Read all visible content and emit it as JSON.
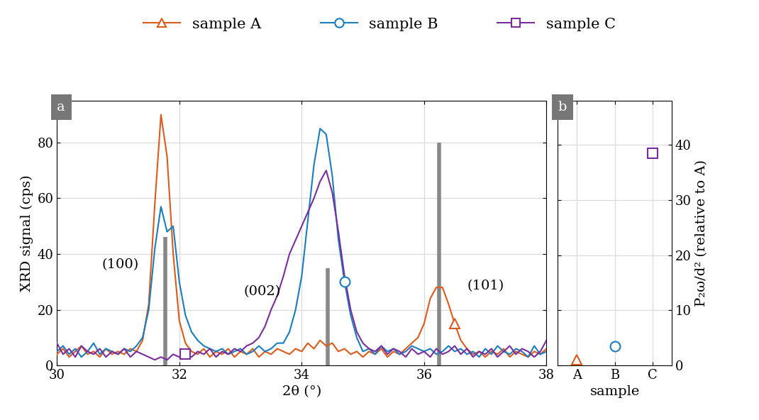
{
  "chart_data": [
    {
      "type": "line",
      "panel_label": "a",
      "x_label": "2θ (°)",
      "y_label": "XRD signal (cps)",
      "xlim": [
        30,
        38
      ],
      "xticks": [
        30,
        32,
        34,
        36,
        38
      ],
      "ylim": [
        0,
        95
      ],
      "yticks": [
        0,
        20,
        40,
        60,
        80
      ],
      "grid": true,
      "legend": "upper center",
      "x": [
        30.0,
        30.1,
        30.2,
        30.3,
        30.4,
        30.5,
        30.6,
        30.7,
        30.8,
        30.9,
        31.0,
        31.1,
        31.2,
        31.3,
        31.4,
        31.5,
        31.6,
        31.7,
        31.8,
        31.9,
        32.0,
        32.1,
        32.2,
        32.3,
        32.4,
        32.5,
        32.6,
        32.7,
        32.8,
        32.9,
        33.0,
        33.1,
        33.2,
        33.3,
        33.4,
        33.5,
        33.6,
        33.7,
        33.8,
        33.9,
        34.0,
        34.1,
        34.2,
        34.3,
        34.4,
        34.5,
        34.6,
        34.7,
        34.8,
        34.9,
        35.0,
        35.1,
        35.2,
        35.3,
        35.4,
        35.5,
        35.6,
        35.7,
        35.8,
        35.9,
        36.0,
        36.1,
        36.2,
        36.3,
        36.4,
        36.5,
        36.6,
        36.7,
        36.8,
        36.9,
        37.0,
        37.1,
        37.2,
        37.3,
        37.4,
        37.5,
        37.6,
        37.7,
        37.8,
        37.9,
        38.0
      ],
      "series": [
        {
          "name": "sample A",
          "color": "#dd5a1a",
          "marker": "triangle",
          "line_style": "solid",
          "values": [
            4,
            6,
            3,
            5,
            7,
            4,
            5,
            3,
            6,
            4,
            5,
            4,
            6,
            5,
            9,
            22,
            58,
            90,
            75,
            40,
            16,
            8,
            5,
            4,
            6,
            3,
            5,
            4,
            6,
            3,
            5,
            4,
            6,
            3,
            5,
            4,
            6,
            5,
            4,
            6,
            5,
            8,
            6,
            9,
            7,
            8,
            5,
            6,
            4,
            5,
            3,
            5,
            4,
            6,
            3,
            5,
            4,
            6,
            8,
            10,
            15,
            24,
            28,
            28,
            22,
            15,
            9,
            6,
            4,
            5,
            3,
            5,
            4,
            6,
            3,
            5,
            4,
            3,
            5,
            4,
            6
          ]
        },
        {
          "name": "sample B",
          "color": "#1a7dbf",
          "marker": "circle",
          "line_style": "solid",
          "values": [
            5,
            7,
            4,
            6,
            3,
            5,
            8,
            4,
            6,
            5,
            4,
            6,
            5,
            7,
            10,
            20,
            42,
            57,
            48,
            50,
            30,
            18,
            12,
            9,
            7,
            6,
            5,
            6,
            4,
            5,
            6,
            4,
            5,
            7,
            5,
            6,
            8,
            8,
            12,
            20,
            32,
            52,
            72,
            85,
            83,
            68,
            45,
            30,
            18,
            10,
            5,
            6,
            4,
            7,
            5,
            6,
            4,
            5,
            7,
            6,
            5,
            6,
            4,
            5,
            7,
            5,
            6,
            4,
            5,
            3,
            6,
            4,
            7,
            5,
            4,
            6,
            5,
            3,
            7,
            4,
            5
          ]
        },
        {
          "name": "sample C",
          "color": "#7b2d9e",
          "marker": "square",
          "line_style": "solid",
          "values": [
            8,
            4,
            6,
            3,
            7,
            5,
            4,
            6,
            3,
            5,
            4,
            6,
            3,
            5,
            4,
            3,
            2,
            3,
            2,
            4,
            3,
            4,
            3,
            5,
            4,
            6,
            3,
            5,
            4,
            6,
            5,
            7,
            8,
            10,
            14,
            20,
            25,
            32,
            40,
            45,
            50,
            55,
            60,
            66,
            70,
            62,
            48,
            32,
            20,
            12,
            8,
            6,
            5,
            7,
            4,
            6,
            5,
            3,
            6,
            4,
            5,
            3,
            6,
            4,
            5,
            7,
            4,
            6,
            3,
            5,
            4,
            6,
            3,
            5,
            7,
            4,
            6,
            5,
            3,
            5,
            9
          ]
        }
      ],
      "reference": {
        "color": "#888888",
        "x": [
          31.77,
          34.42,
          36.25
        ],
        "values": [
          46,
          35,
          80
        ]
      },
      "annotations": [
        "(100)",
        "(002)",
        "(101)"
      ]
    },
    {
      "type": "scatter",
      "panel_label": "b",
      "x_label": "sample",
      "y_label": "P₂ω/d² (relative to A)",
      "categories": [
        "A",
        "B",
        "C"
      ],
      "values": [
        1,
        3.5,
        38.5
      ],
      "colors": [
        "#dd5a1a",
        "#1a7dbf",
        "#7b2d9e"
      ],
      "ylim": [
        0,
        48
      ],
      "yticks": [
        0,
        10,
        20,
        30,
        40
      ],
      "grid": true
    }
  ]
}
